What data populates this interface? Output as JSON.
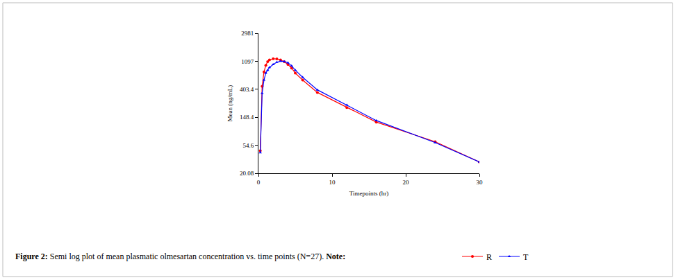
{
  "chart_data": {
    "type": "line",
    "title": "Figure 2: Semi log plot of mean plasmatic olmesartan concentration vs. time points (N=27). Note:",
    "x_label": "Timepoints (hr)",
    "y_label": "Mean (ng/mL)",
    "x": [
      0.25,
      0.5,
      0.75,
      1,
      1.25,
      1.5,
      2,
      2.5,
      3,
      3.5,
      4,
      4.5,
      5,
      6,
      8,
      12,
      16,
      24,
      30
    ],
    "series": [
      {
        "name": "R",
        "color": "#ff0000",
        "marker": "circle",
        "line_style": "solid",
        "values": [
          45,
          450,
          750,
          950,
          1080,
          1150,
          1200,
          1190,
          1150,
          1080,
          980,
          860,
          720,
          560,
          360,
          210,
          125,
          62,
          30
        ]
      },
      {
        "name": "T",
        "color": "#0000ff",
        "marker": "triangle-up",
        "line_style": "solid",
        "values": [
          42,
          350,
          560,
          720,
          800,
          880,
          980,
          1060,
          1100,
          1090,
          1040,
          930,
          800,
          620,
          395,
          230,
          132,
          60,
          30
        ]
      }
    ],
    "xlim": [
      0,
      30
    ],
    "xticks": [
      0,
      10,
      20,
      30
    ],
    "ylim": [
      20.08,
      2981
    ],
    "yticks": [
      20.08,
      54.6,
      148.4,
      403.4,
      1097,
      2981
    ],
    "log": "y",
    "grid": false
  }
}
